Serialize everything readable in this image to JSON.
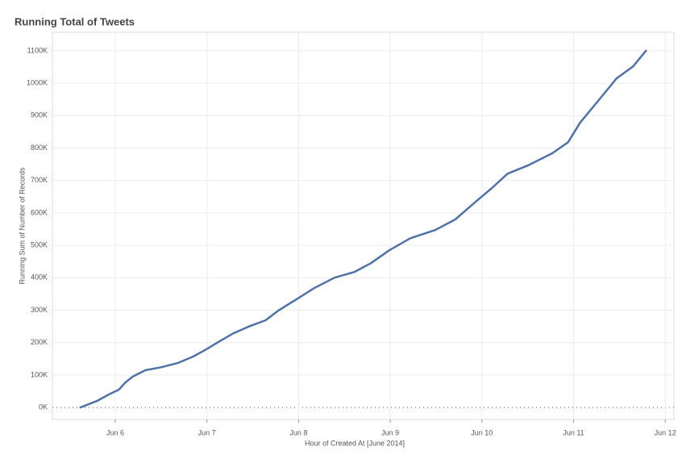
{
  "chart_data": {
    "type": "line",
    "title": "Running Total of Tweets",
    "x_label": "Hour of Created At [June 2014]",
    "y_label": "Running Sum of Number of Records",
    "color": "#4f72a6",
    "x": [
      5.62,
      5.8,
      5.93,
      6.04,
      6.11,
      6.19,
      6.33,
      6.5,
      6.68,
      6.85,
      6.99,
      7.12,
      7.29,
      7.47,
      7.64,
      7.78,
      7.99,
      8.17,
      8.39,
      8.61,
      8.79,
      8.99,
      9.22,
      9.49,
      9.71,
      9.93,
      10.11,
      10.28,
      10.5,
      10.77,
      10.94,
      11.07,
      11.29,
      11.47,
      11.65,
      11.79
    ],
    "values": [
      0,
      20000,
      40000,
      55000,
      77000,
      95000,
      115000,
      124000,
      137000,
      157000,
      179000,
      201000,
      229000,
      251000,
      269000,
      299000,
      336000,
      368000,
      400000,
      418000,
      445000,
      485000,
      522000,
      547000,
      580000,
      634000,
      677000,
      721000,
      746000,
      784000,
      818000,
      878000,
      953000,
      1015000,
      1052000,
      1100000
    ],
    "xlim": [
      5.314,
      12.095
    ],
    "xticks": [
      {
        "value": 6,
        "label": "Jun 6"
      },
      {
        "value": 7,
        "label": "Jun 7"
      },
      {
        "value": 8,
        "label": "Jun 8"
      },
      {
        "value": 9,
        "label": "Jun 9"
      },
      {
        "value": 10,
        "label": "Jun 10"
      },
      {
        "value": 11,
        "label": "Jun 11"
      },
      {
        "value": 12,
        "label": "Jun 12"
      }
    ],
    "ylim": [
      -37000,
      1157000
    ],
    "yticks": [
      {
        "value": 0,
        "label": "0K"
      },
      {
        "value": 100000,
        "label": "100K"
      },
      {
        "value": 200000,
        "label": "200K"
      },
      {
        "value": 300000,
        "label": "300K"
      },
      {
        "value": 400000,
        "label": "400K"
      },
      {
        "value": 500000,
        "label": "500K"
      },
      {
        "value": 600000,
        "label": "600K"
      },
      {
        "value": 700000,
        "label": "700K"
      },
      {
        "value": 800000,
        "label": "800K"
      },
      {
        "value": 900000,
        "label": "900K"
      },
      {
        "value": 1000000,
        "label": "1000K"
      },
      {
        "value": 1100000,
        "label": "1100K"
      }
    ],
    "grid": true
  }
}
